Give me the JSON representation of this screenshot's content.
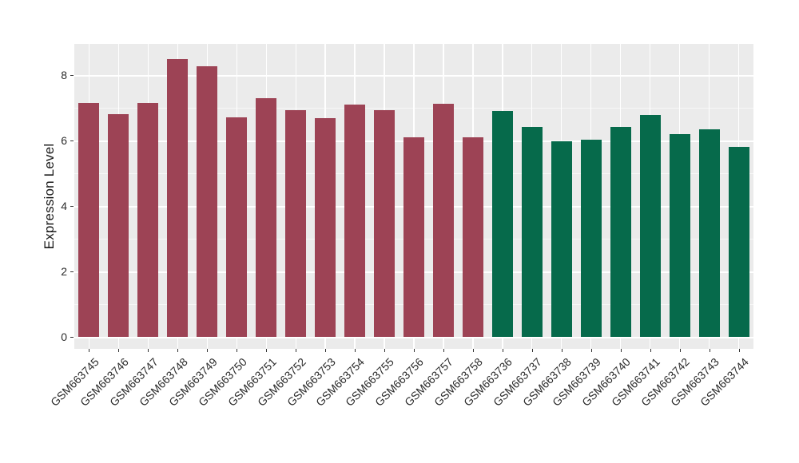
{
  "figure": {
    "background": "#FFFFFF",
    "panel_background": "#EBEBEB",
    "grid_major_color": "#FFFFFF",
    "grid_minor_color": "rgba(255,255,255,0.62)",
    "tick_color": "#333333",
    "text_color": "#2b2b2b"
  },
  "chart_data": {
    "type": "bar",
    "title": "",
    "xlabel": "",
    "ylabel": "Expression Level",
    "ylim": [
      0,
      8.95
    ],
    "yticks": [
      0,
      2,
      4,
      6,
      8
    ],
    "yminor": [
      1,
      3,
      5,
      7
    ],
    "grid": "on",
    "legend": "none",
    "groups": [
      {
        "name": "group-1",
        "color": "#9D4355"
      },
      {
        "name": "group-2",
        "color": "#066A4B"
      }
    ],
    "bars": [
      {
        "label": "GSM663745",
        "value": 7.15,
        "group": 0
      },
      {
        "label": "GSM663746",
        "value": 6.8,
        "group": 0
      },
      {
        "label": "GSM663747",
        "value": 7.15,
        "group": 0
      },
      {
        "label": "GSM663748",
        "value": 8.49,
        "group": 0
      },
      {
        "label": "GSM663749",
        "value": 8.27,
        "group": 0
      },
      {
        "label": "GSM663750",
        "value": 6.71,
        "group": 0
      },
      {
        "label": "GSM663751",
        "value": 7.29,
        "group": 0
      },
      {
        "label": "GSM663752",
        "value": 6.92,
        "group": 0
      },
      {
        "label": "GSM663753",
        "value": 6.68,
        "group": 0
      },
      {
        "label": "GSM663754",
        "value": 7.1,
        "group": 0
      },
      {
        "label": "GSM663755",
        "value": 6.93,
        "group": 0
      },
      {
        "label": "GSM663756",
        "value": 6.1,
        "group": 0
      },
      {
        "label": "GSM663757",
        "value": 7.13,
        "group": 0
      },
      {
        "label": "GSM663758",
        "value": 6.1,
        "group": 0
      },
      {
        "label": "GSM663736",
        "value": 6.9,
        "group": 1
      },
      {
        "label": "GSM663737",
        "value": 6.41,
        "group": 1
      },
      {
        "label": "GSM663738",
        "value": 5.97,
        "group": 1
      },
      {
        "label": "GSM663739",
        "value": 6.03,
        "group": 1
      },
      {
        "label": "GSM663740",
        "value": 6.42,
        "group": 1
      },
      {
        "label": "GSM663741",
        "value": 6.77,
        "group": 1
      },
      {
        "label": "GSM663742",
        "value": 6.2,
        "group": 1
      },
      {
        "label": "GSM663743",
        "value": 6.35,
        "group": 1
      },
      {
        "label": "GSM663744",
        "value": 5.8,
        "group": 1
      }
    ]
  }
}
